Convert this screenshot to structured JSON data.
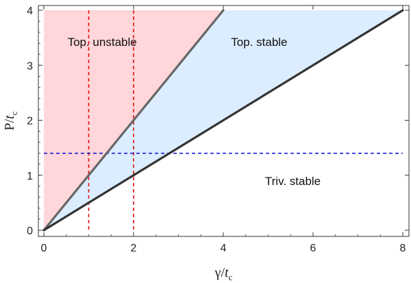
{
  "chart_data": {
    "type": "area",
    "title": "",
    "xlabel": {
      "base": "γ/",
      "var": "t",
      "sub": "c"
    },
    "ylabel": {
      "base": "P/",
      "var": "t",
      "sub": "c"
    },
    "xlim": [
      0,
      8.2
    ],
    "ylim": [
      0,
      4
    ],
    "x_ticks": [
      0,
      2,
      4,
      6,
      8
    ],
    "y_ticks": [
      0,
      1,
      2,
      3,
      4
    ],
    "grid": false,
    "boundary_lines": [
      {
        "name": "",
        "points": [
          [
            0,
            0
          ],
          [
            4,
            4
          ]
        ],
        "color": "#666666"
      },
      {
        "name": "",
        "points": [
          [
            0,
            0
          ],
          [
            8,
            4
          ]
        ],
        "color": "#333333"
      }
    ],
    "regions": [
      {
        "label": "Top. unstable",
        "color": "#ffd6d9",
        "polygon": [
          [
            0,
            0
          ],
          [
            4,
            4
          ],
          [
            0,
            4
          ]
        ]
      },
      {
        "label": "Top. stable",
        "color": "#dcedff",
        "polygon": [
          [
            0,
            0
          ],
          [
            8,
            4
          ],
          [
            4,
            4
          ]
        ]
      },
      {
        "label": "Triv. stable",
        "color": "#ffffff",
        "polygon": []
      }
    ],
    "reference_lines": [
      {
        "orientation": "vertical",
        "value": 1,
        "color": "#e01010",
        "style": "dashed"
      },
      {
        "orientation": "vertical",
        "value": 2,
        "color": "#e01010",
        "style": "dashed"
      },
      {
        "orientation": "horizontal",
        "value": 1.4,
        "color": "#1a1adb",
        "style": "dashed"
      }
    ],
    "annotations": [
      {
        "text": "Top. unstable",
        "x": 1.3,
        "y": 3.35
      },
      {
        "text": "Top. stable",
        "x": 4.8,
        "y": 3.35
      },
      {
        "text": "Triv. stable",
        "x": 5.55,
        "y": 0.82
      }
    ]
  }
}
